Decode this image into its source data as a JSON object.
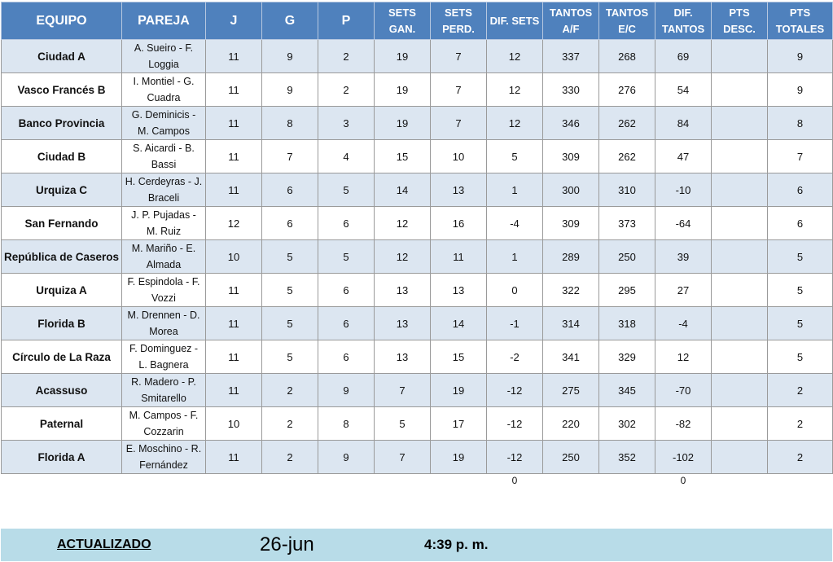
{
  "headers": {
    "equipo": "EQUIPO",
    "pareja": "PAREJA",
    "j": "J",
    "g": "G",
    "p": "P",
    "sets_gan": [
      "SETS",
      "GAN."
    ],
    "sets_perd": [
      "SETS",
      "PERD."
    ],
    "dif_sets": "DIF. SETS",
    "tantos_af": [
      "TANTOS",
      "A/F"
    ],
    "tantos_ec": [
      "TANTOS",
      "E/C"
    ],
    "dif_tantos": [
      "DIF.",
      "TANTOS"
    ],
    "pts_desc": [
      "PTS",
      "DESC."
    ],
    "pts_totales": [
      "PTS",
      "TOTALES"
    ]
  },
  "rows": [
    {
      "equipo": "Ciudad A",
      "pareja": [
        "A. Sueiro - F.",
        "Loggia"
      ],
      "j": "11",
      "g": "9",
      "p": "2",
      "sg": "19",
      "sp": "7",
      "ds": "12",
      "ta": "337",
      "te": "268",
      "dt": "69",
      "pd": "",
      "pt": "9"
    },
    {
      "equipo": "Vasco Francés B",
      "pareja": [
        "I. Montiel - G.",
        "Cuadra"
      ],
      "j": "11",
      "g": "9",
      "p": "2",
      "sg": "19",
      "sp": "7",
      "ds": "12",
      "ta": "330",
      "te": "276",
      "dt": "54",
      "pd": "",
      "pt": "9"
    },
    {
      "equipo": "Banco Provincia",
      "pareja": [
        "G. Deminicis -",
        "M. Campos"
      ],
      "j": "11",
      "g": "8",
      "p": "3",
      "sg": "19",
      "sp": "7",
      "ds": "12",
      "ta": "346",
      "te": "262",
      "dt": "84",
      "pd": "",
      "pt": "8"
    },
    {
      "equipo": "Ciudad B",
      "pareja": [
        "S. Aicardi - B.",
        "Bassi"
      ],
      "j": "11",
      "g": "7",
      "p": "4",
      "sg": "15",
      "sp": "10",
      "ds": "5",
      "ta": "309",
      "te": "262",
      "dt": "47",
      "pd": "",
      "pt": "7"
    },
    {
      "equipo": "Urquiza C",
      "pareja": [
        "H. Cerdeyras - J.",
        "Braceli"
      ],
      "j": "11",
      "g": "6",
      "p": "5",
      "sg": "14",
      "sp": "13",
      "ds": "1",
      "ta": "300",
      "te": "310",
      "dt": "-10",
      "pd": "",
      "pt": "6"
    },
    {
      "equipo": "San Fernando",
      "pareja": [
        "J. P. Pujadas -",
        "M. Ruiz"
      ],
      "j": "12",
      "g": "6",
      "p": "6",
      "sg": "12",
      "sp": "16",
      "ds": "-4",
      "ta": "309",
      "te": "373",
      "dt": "-64",
      "pd": "",
      "pt": "6"
    },
    {
      "equipo": "República de Caseros",
      "pareja": [
        "M. Mariño - E.",
        "Almada"
      ],
      "j": "10",
      "g": "5",
      "p": "5",
      "sg": "12",
      "sp": "11",
      "ds": "1",
      "ta": "289",
      "te": "250",
      "dt": "39",
      "pd": "",
      "pt": "5"
    },
    {
      "equipo": "Urquiza A",
      "pareja": [
        "F. Espindola - F.",
        "Vozzi"
      ],
      "j": "11",
      "g": "5",
      "p": "6",
      "sg": "13",
      "sp": "13",
      "ds": "0",
      "ta": "322",
      "te": "295",
      "dt": "27",
      "pd": "",
      "pt": "5"
    },
    {
      "equipo": "Florida B",
      "pareja": [
        "M. Drennen - D.",
        "Morea"
      ],
      "j": "11",
      "g": "5",
      "p": "6",
      "sg": "13",
      "sp": "14",
      "ds": "-1",
      "ta": "314",
      "te": "318",
      "dt": "-4",
      "pd": "",
      "pt": "5"
    },
    {
      "equipo": "Círculo de La Raza",
      "pareja": [
        "F. Dominguez -",
        "L. Bagnera"
      ],
      "j": "11",
      "g": "5",
      "p": "6",
      "sg": "13",
      "sp": "15",
      "ds": "-2",
      "ta": "341",
      "te": "329",
      "dt": "12",
      "pd": "",
      "pt": "5"
    },
    {
      "equipo": "Acassuso",
      "pareja": [
        "R. Madero - P.",
        "Smitarello"
      ],
      "j": "11",
      "g": "2",
      "p": "9",
      "sg": "7",
      "sp": "19",
      "ds": "-12",
      "ta": "275",
      "te": "345",
      "dt": "-70",
      "pd": "",
      "pt": "2"
    },
    {
      "equipo": "Paternal",
      "pareja": [
        "M. Campos - F.",
        "Cozzarin"
      ],
      "j": "10",
      "g": "2",
      "p": "8",
      "sg": "5",
      "sp": "17",
      "ds": "-12",
      "ta": "220",
      "te": "302",
      "dt": "-82",
      "pd": "",
      "pt": "2"
    },
    {
      "equipo": "Florida A",
      "pareja": [
        "E. Moschino - R.",
        "Fernández"
      ],
      "j": "11",
      "g": "2",
      "p": "9",
      "sg": "7",
      "sp": "19",
      "ds": "-12",
      "ta": "250",
      "te": "352",
      "dt": "-102",
      "pd": "",
      "pt": "2"
    }
  ],
  "totals": {
    "dif_sets": "0",
    "dif_tantos": "0"
  },
  "footer": {
    "label": "ACTUALIZADO",
    "date": "26-jun",
    "time": "4:39 p. m."
  }
}
